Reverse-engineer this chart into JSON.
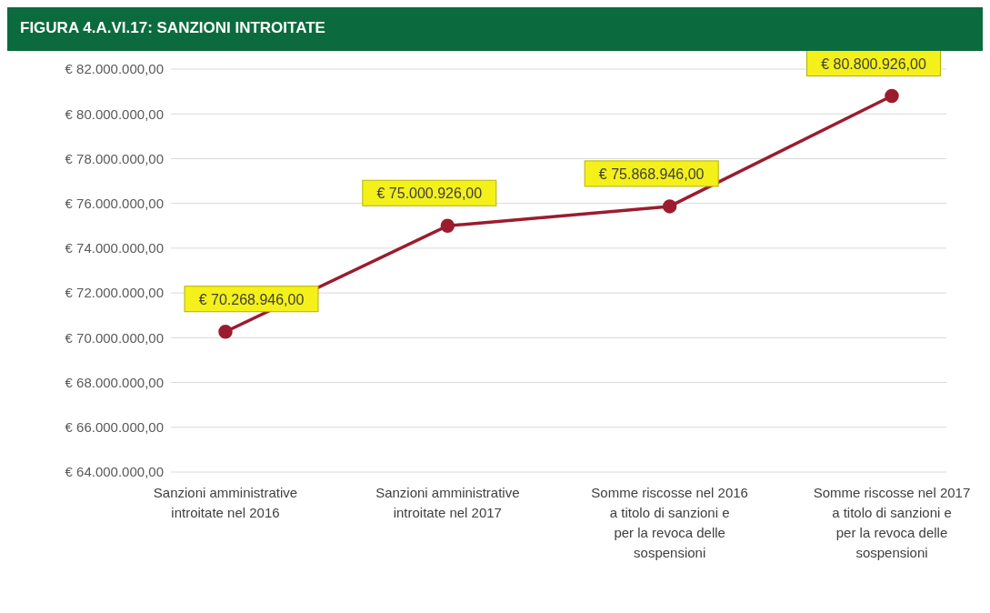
{
  "chart_data": {
    "type": "line",
    "title": "FIGURA 4.A.VI.17:  SANZIONI INTROITATE",
    "categories": [
      "Sanzioni amministrative introitate nel 2016",
      "Sanzioni amministrative introitate nel 2017",
      "Somme riscosse nel 2016 a titolo di sanzioni e per la revoca delle sospensioni",
      "Somme riscosse nel 2017 a titolo di sanzioni e per la revoca delle sospensioni"
    ],
    "series": [
      {
        "color": "#9b1c2e",
        "values": [
          70268946,
          75000926,
          75868946,
          80800926
        ],
        "value_labels": [
          "€ 70.268.946,00",
          "€ 75.000.926,00",
          "€ 75.868.946,00",
          "€ 80.800.926,00"
        ]
      }
    ],
    "ylim": [
      64000000,
      82000000
    ],
    "yticks": [
      {
        "value": 64000000,
        "label": "€ 64.000.000,00"
      },
      {
        "value": 66000000,
        "label": "€ 66.000.000,00"
      },
      {
        "value": 68000000,
        "label": "€ 68.000.000,00"
      },
      {
        "value": 70000000,
        "label": "€ 70.000.000,00"
      },
      {
        "value": 72000000,
        "label": "€ 72.000.000,00"
      },
      {
        "value": 74000000,
        "label": "€ 74.000.000,00"
      },
      {
        "value": 76000000,
        "label": "€ 76.000.000,00"
      },
      {
        "value": 78000000,
        "label": "€ 78.000.000,00"
      },
      {
        "value": 80000000,
        "label": "€ 80.000.000,00"
      },
      {
        "value": 82000000,
        "label": "€ 82.000.000,00"
      }
    ],
    "grid": "y",
    "marker": "circle",
    "line_style": "solid"
  }
}
